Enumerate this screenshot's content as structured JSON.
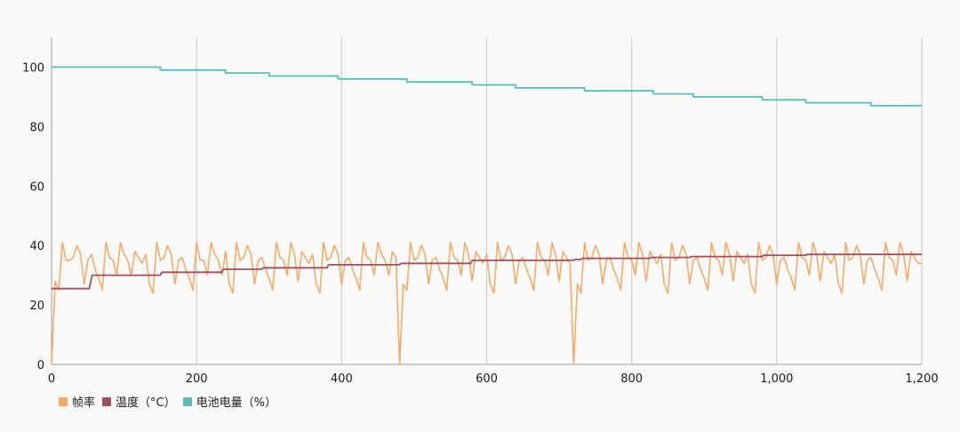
{
  "chart_data": {
    "type": "line",
    "title": "",
    "xlabel": "",
    "ylabel": "",
    "xlim": [
      0,
      1200
    ],
    "ylim": [
      0,
      110
    ],
    "x_ticks": [
      0,
      200,
      400,
      600,
      800,
      1000,
      1200
    ],
    "x_tick_labels": [
      "0",
      "200",
      "400",
      "600",
      "800",
      "1,000",
      "1,200"
    ],
    "y_ticks": [
      0,
      20,
      40,
      60,
      80,
      100
    ],
    "y_tick_labels": [
      "0",
      "20",
      "40",
      "60",
      "80",
      "100"
    ],
    "grid": "vertical",
    "legend_position": "bottom-left",
    "series": [
      {
        "name": "帧率",
        "color": "#f5ab66",
        "interpolation": "linear",
        "points": [
          [
            0,
            0
          ],
          [
            5,
            28
          ],
          [
            10,
            25
          ],
          [
            15,
            41
          ],
          [
            20,
            35
          ],
          [
            25,
            35
          ],
          [
            30,
            36
          ],
          [
            35,
            40
          ],
          [
            40,
            37
          ],
          [
            45,
            27
          ],
          [
            50,
            35
          ],
          [
            55,
            37
          ],
          [
            60,
            32
          ],
          [
            65,
            29
          ],
          [
            70,
            25
          ],
          [
            75,
            41
          ],
          [
            80,
            36
          ],
          [
            85,
            35
          ],
          [
            90,
            30
          ],
          [
            95,
            41
          ],
          [
            100,
            37
          ],
          [
            105,
            35
          ],
          [
            110,
            30
          ],
          [
            115,
            38
          ],
          [
            120,
            36
          ],
          [
            125,
            34
          ],
          [
            130,
            37
          ],
          [
            135,
            27
          ],
          [
            140,
            24
          ],
          [
            145,
            41
          ],
          [
            150,
            35
          ],
          [
            155,
            36
          ],
          [
            160,
            40
          ],
          [
            165,
            37
          ],
          [
            170,
            27
          ],
          [
            175,
            35
          ],
          [
            180,
            36
          ],
          [
            185,
            32
          ],
          [
            190,
            29
          ],
          [
            195,
            25
          ],
          [
            200,
            41
          ],
          [
            205,
            35
          ],
          [
            210,
            35
          ],
          [
            215,
            30
          ],
          [
            220,
            41
          ],
          [
            225,
            37
          ],
          [
            230,
            35
          ],
          [
            235,
            30
          ],
          [
            240,
            38
          ],
          [
            245,
            27
          ],
          [
            250,
            24
          ],
          [
            255,
            41
          ],
          [
            260,
            35
          ],
          [
            265,
            36
          ],
          [
            270,
            40
          ],
          [
            275,
            37
          ],
          [
            280,
            27
          ],
          [
            285,
            35
          ],
          [
            290,
            36
          ],
          [
            295,
            32
          ],
          [
            300,
            29
          ],
          [
            305,
            25
          ],
          [
            310,
            41
          ],
          [
            315,
            36
          ],
          [
            320,
            35
          ],
          [
            325,
            30
          ],
          [
            330,
            41
          ],
          [
            335,
            37
          ],
          [
            340,
            28
          ],
          [
            345,
            38
          ],
          [
            350,
            36
          ],
          [
            355,
            34
          ],
          [
            360,
            37
          ],
          [
            365,
            27
          ],
          [
            370,
            24
          ],
          [
            375,
            41
          ],
          [
            380,
            35
          ],
          [
            385,
            36
          ],
          [
            390,
            40
          ],
          [
            395,
            37
          ],
          [
            400,
            27
          ],
          [
            405,
            35
          ],
          [
            410,
            36
          ],
          [
            415,
            32
          ],
          [
            420,
            29
          ],
          [
            425,
            25
          ],
          [
            430,
            41
          ],
          [
            435,
            36
          ],
          [
            440,
            35
          ],
          [
            445,
            30
          ],
          [
            450,
            41
          ],
          [
            455,
            37
          ],
          [
            460,
            35
          ],
          [
            465,
            30
          ],
          [
            470,
            38
          ],
          [
            475,
            36
          ],
          [
            480,
            0
          ],
          [
            485,
            27
          ],
          [
            490,
            25
          ],
          [
            495,
            41
          ],
          [
            500,
            35
          ],
          [
            505,
            36
          ],
          [
            510,
            40
          ],
          [
            515,
            37
          ],
          [
            520,
            27
          ],
          [
            525,
            35
          ],
          [
            530,
            36
          ],
          [
            535,
            32
          ],
          [
            540,
            29
          ],
          [
            545,
            25
          ],
          [
            550,
            41
          ],
          [
            555,
            36
          ],
          [
            560,
            35
          ],
          [
            565,
            30
          ],
          [
            570,
            41
          ],
          [
            575,
            37
          ],
          [
            580,
            28
          ],
          [
            585,
            38
          ],
          [
            590,
            36
          ],
          [
            595,
            34
          ],
          [
            600,
            37
          ],
          [
            605,
            27
          ],
          [
            610,
            24
          ],
          [
            615,
            41
          ],
          [
            620,
            35
          ],
          [
            625,
            36
          ],
          [
            630,
            40
          ],
          [
            635,
            37
          ],
          [
            640,
            27
          ],
          [
            645,
            35
          ],
          [
            650,
            36
          ],
          [
            655,
            32
          ],
          [
            660,
            29
          ],
          [
            665,
            25
          ],
          [
            670,
            41
          ],
          [
            675,
            36
          ],
          [
            680,
            35
          ],
          [
            685,
            30
          ],
          [
            690,
            41
          ],
          [
            695,
            37
          ],
          [
            700,
            28
          ],
          [
            705,
            38
          ],
          [
            710,
            36
          ],
          [
            715,
            34
          ],
          [
            720,
            0
          ],
          [
            725,
            27
          ],
          [
            730,
            24
          ],
          [
            735,
            41
          ],
          [
            740,
            35
          ],
          [
            745,
            36
          ],
          [
            750,
            40
          ],
          [
            755,
            37
          ],
          [
            760,
            27
          ],
          [
            765,
            35
          ],
          [
            770,
            36
          ],
          [
            775,
            32
          ],
          [
            780,
            29
          ],
          [
            785,
            25
          ],
          [
            790,
            41
          ],
          [
            795,
            36
          ],
          [
            800,
            35
          ],
          [
            805,
            30
          ],
          [
            810,
            41
          ],
          [
            815,
            37
          ],
          [
            820,
            28
          ],
          [
            825,
            38
          ],
          [
            830,
            36
          ],
          [
            835,
            34
          ],
          [
            840,
            37
          ],
          [
            845,
            27
          ],
          [
            850,
            24
          ],
          [
            855,
            41
          ],
          [
            860,
            35
          ],
          [
            865,
            36
          ],
          [
            870,
            40
          ],
          [
            875,
            37
          ],
          [
            880,
            27
          ],
          [
            885,
            35
          ],
          [
            890,
            36
          ],
          [
            895,
            32
          ],
          [
            900,
            29
          ],
          [
            905,
            25
          ],
          [
            910,
            41
          ],
          [
            915,
            36
          ],
          [
            920,
            35
          ],
          [
            925,
            30
          ],
          [
            930,
            41
          ],
          [
            935,
            37
          ],
          [
            940,
            28
          ],
          [
            945,
            38
          ],
          [
            950,
            36
          ],
          [
            955,
            34
          ],
          [
            960,
            37
          ],
          [
            965,
            27
          ],
          [
            970,
            24
          ],
          [
            975,
            41
          ],
          [
            980,
            35
          ],
          [
            985,
            36
          ],
          [
            990,
            40
          ],
          [
            995,
            37
          ],
          [
            1000,
            27
          ],
          [
            1005,
            35
          ],
          [
            1010,
            36
          ],
          [
            1015,
            32
          ],
          [
            1020,
            29
          ],
          [
            1025,
            25
          ],
          [
            1030,
            41
          ],
          [
            1035,
            36
          ],
          [
            1040,
            35
          ],
          [
            1045,
            30
          ],
          [
            1050,
            41
          ],
          [
            1055,
            37
          ],
          [
            1060,
            28
          ],
          [
            1065,
            38
          ],
          [
            1070,
            36
          ],
          [
            1075,
            34
          ],
          [
            1080,
            37
          ],
          [
            1085,
            27
          ],
          [
            1090,
            24
          ],
          [
            1095,
            41
          ],
          [
            1100,
            35
          ],
          [
            1105,
            36
          ],
          [
            1110,
            40
          ],
          [
            1115,
            37
          ],
          [
            1120,
            27
          ],
          [
            1125,
            35
          ],
          [
            1130,
            36
          ],
          [
            1135,
            32
          ],
          [
            1140,
            29
          ],
          [
            1145,
            25
          ],
          [
            1150,
            41
          ],
          [
            1155,
            36
          ],
          [
            1160,
            35
          ],
          [
            1165,
            30
          ],
          [
            1170,
            41
          ],
          [
            1175,
            37
          ],
          [
            1180,
            28
          ],
          [
            1185,
            38
          ],
          [
            1190,
            36
          ],
          [
            1195,
            34
          ],
          [
            1200,
            34
          ]
        ]
      },
      {
        "name": "温度（°C）",
        "color": "#a0505f",
        "interpolation": "linear",
        "points": [
          [
            0,
            25.5
          ],
          [
            52,
            25.5
          ],
          [
            56,
            30
          ],
          [
            120,
            30
          ],
          [
            150,
            30
          ],
          [
            152,
            31
          ],
          [
            235,
            31
          ],
          [
            237,
            32
          ],
          [
            290,
            32
          ],
          [
            292,
            32.5
          ],
          [
            380,
            32.5
          ],
          [
            382,
            33.5
          ],
          [
            480,
            33.5
          ],
          [
            482,
            34
          ],
          [
            578,
            34
          ],
          [
            580,
            35
          ],
          [
            720,
            35
          ],
          [
            722,
            35.3
          ],
          [
            730,
            35.3
          ],
          [
            732,
            35.7
          ],
          [
            825,
            35.7
          ],
          [
            827,
            36
          ],
          [
            880,
            36
          ],
          [
            882,
            36.3
          ],
          [
            980,
            36.3
          ],
          [
            982,
            36.7
          ],
          [
            1040,
            36.7
          ],
          [
            1042,
            37
          ],
          [
            1200,
            37
          ]
        ]
      },
      {
        "name": "电池电量（%）",
        "color": "#5bbcbb",
        "interpolation": "stepped",
        "points": [
          [
            0,
            100
          ],
          [
            145,
            100
          ],
          [
            150,
            99
          ],
          [
            235,
            99
          ],
          [
            240,
            98
          ],
          [
            295,
            98
          ],
          [
            300,
            97
          ],
          [
            390,
            97
          ],
          [
            395,
            96
          ],
          [
            485,
            96
          ],
          [
            490,
            95
          ],
          [
            575,
            95
          ],
          [
            580,
            94
          ],
          [
            635,
            94
          ],
          [
            640,
            93
          ],
          [
            730,
            93
          ],
          [
            735,
            92
          ],
          [
            825,
            92
          ],
          [
            830,
            91
          ],
          [
            880,
            91
          ],
          [
            885,
            90
          ],
          [
            975,
            90
          ],
          [
            980,
            89
          ],
          [
            1035,
            89
          ],
          [
            1040,
            88
          ],
          [
            1125,
            88
          ],
          [
            1130,
            87
          ],
          [
            1200,
            87
          ]
        ]
      }
    ]
  }
}
